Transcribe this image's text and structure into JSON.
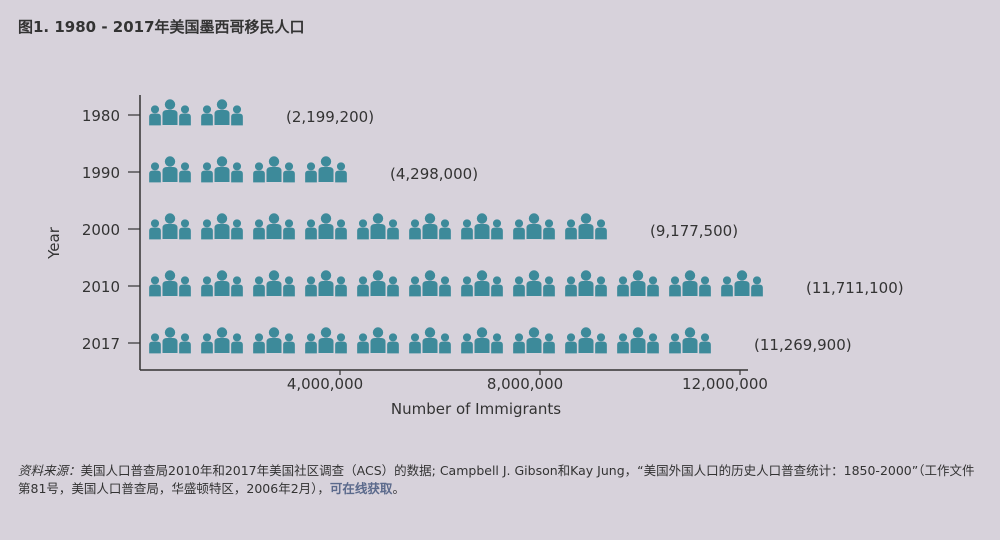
{
  "title": "图1. 1980 - 2017年美国墨西哥移民人口",
  "chart_data": {
    "type": "bar",
    "xlabel": "Number of Immigrants",
    "ylabel": "Year",
    "xlim": [
      0,
      12000000
    ],
    "x_ticks": [
      4000000,
      8000000,
      12000000
    ],
    "x_tick_labels": [
      "4,000,000",
      "8,000,000",
      "12,000,000"
    ],
    "categories": [
      "1980",
      "1990",
      "2000",
      "2010",
      "2017"
    ],
    "values": [
      2199200,
      4298000,
      9177500,
      11711100,
      11269900
    ],
    "value_labels": [
      "(2,199,200)",
      "(4,298,000)",
      "(9,177,500)",
      "(11,711,100)",
      "(11,269,900)"
    ],
    "mark": "people-icon",
    "bar_color": "#3d8a9a",
    "grid": false
  },
  "source": {
    "label": "资料来源：",
    "text": "美国人口普查局2010年和2017年美国社区调查（ACS）的数据; Campbell J. Gibson和Kay Jung，“美国外国人口的历史人口普查统计：1850-2000”（工作文件第81号，美国人口普查局，华盛顿特区，2006年2月），",
    "link_text": "可在线获取",
    "end": "。"
  }
}
